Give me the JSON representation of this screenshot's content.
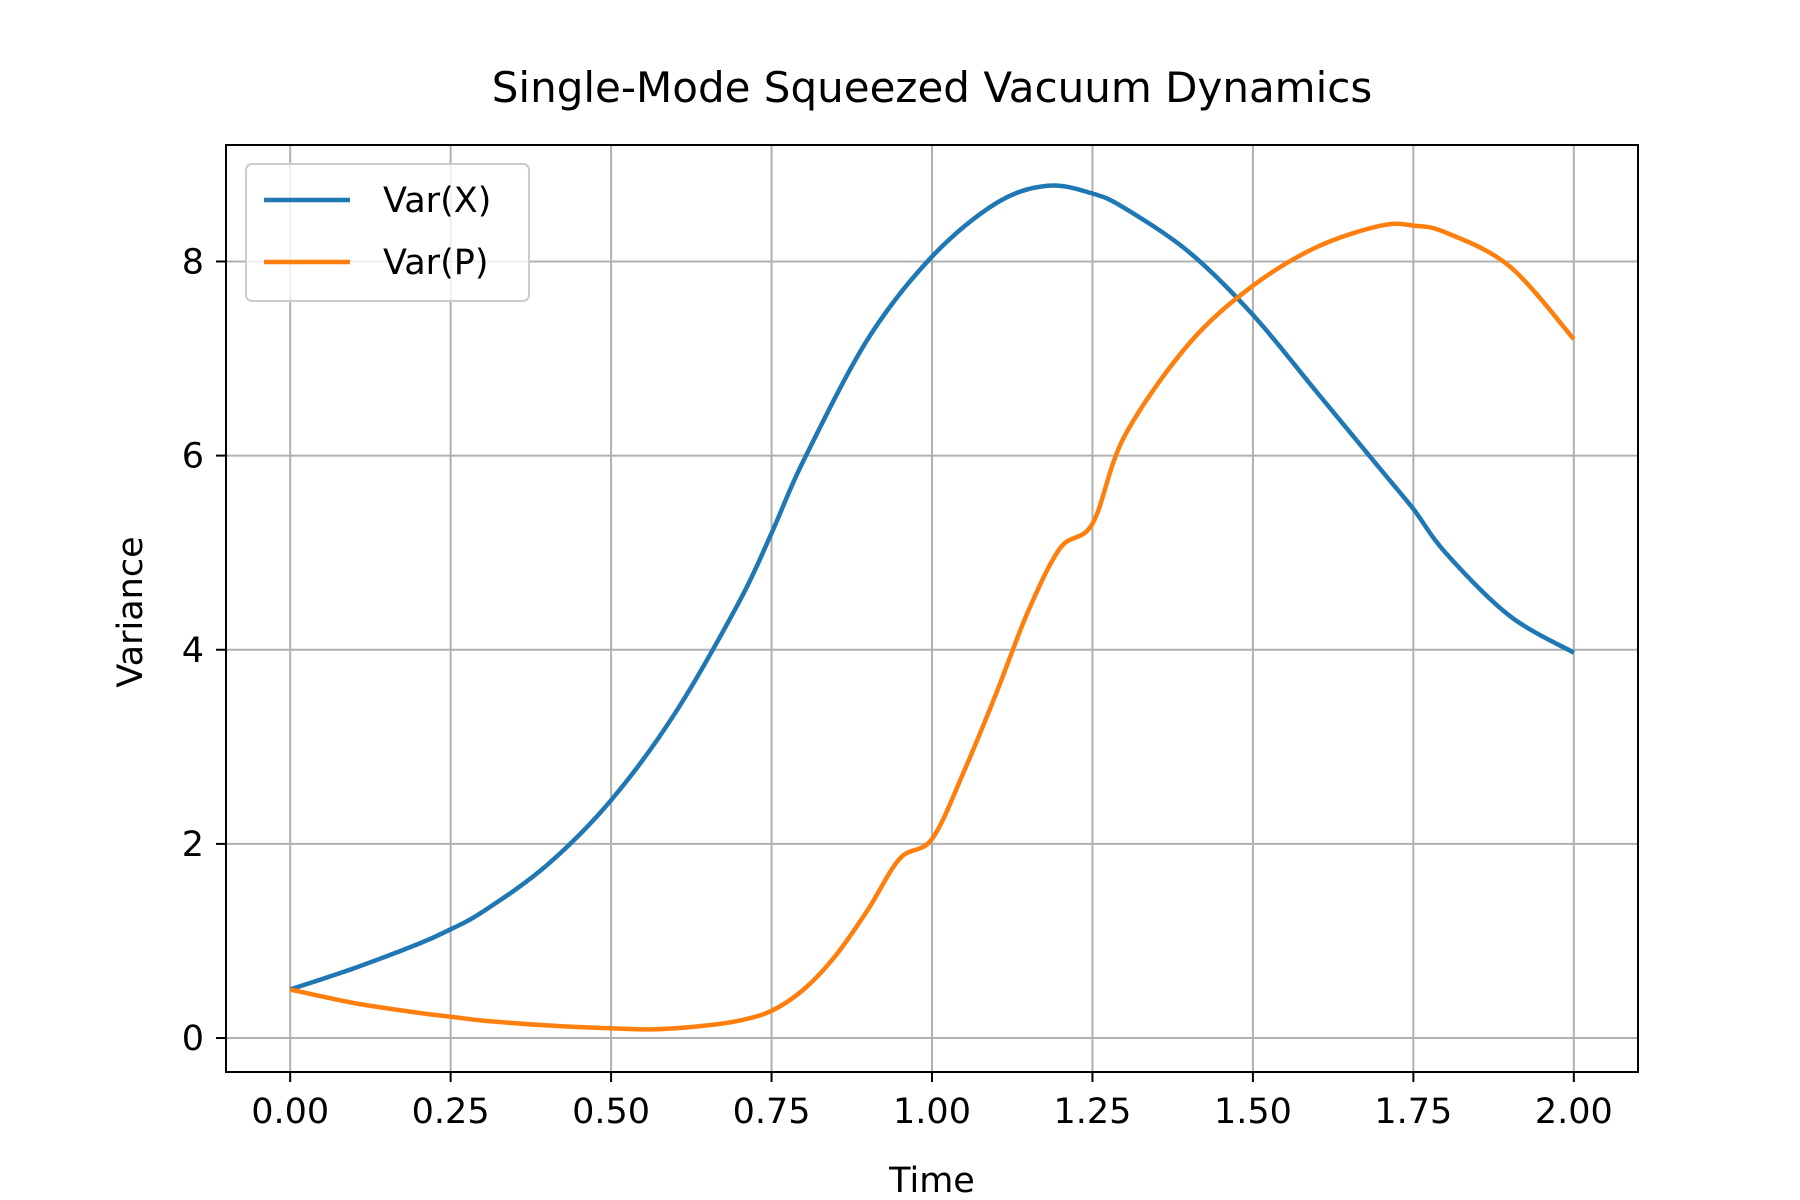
{
  "chart_data": {
    "type": "line",
    "title": "Single-Mode Squeezed Vacuum Dynamics",
    "xlabel": "Time",
    "ylabel": "Variance",
    "xlim": [
      -0.1,
      2.1
    ],
    "ylim": [
      -0.35,
      9.2
    ],
    "xticks": [
      0.0,
      0.25,
      0.5,
      0.75,
      1.0,
      1.25,
      1.5,
      1.75,
      2.0
    ],
    "xtick_labels": [
      "0.00",
      "0.25",
      "0.50",
      "0.75",
      "1.00",
      "1.25",
      "1.50",
      "1.75",
      "2.00"
    ],
    "yticks": [
      0,
      2,
      4,
      6,
      8
    ],
    "ytick_labels": [
      "0",
      "2",
      "4",
      "6",
      "8"
    ],
    "grid": true,
    "legend_position": "top-left",
    "series": [
      {
        "name": "Var(X)",
        "color": "#1f77b4",
        "x": [
          0.0,
          0.1,
          0.2,
          0.25,
          0.3,
          0.4,
          0.5,
          0.6,
          0.7,
          0.75,
          0.8,
          0.9,
          1.0,
          1.1,
          1.18,
          1.25,
          1.3,
          1.4,
          1.5,
          1.6,
          1.7,
          1.75,
          1.8,
          1.9,
          2.0
        ],
        "y": [
          0.5,
          0.72,
          0.97,
          1.12,
          1.3,
          1.78,
          2.45,
          3.35,
          4.5,
          5.2,
          5.95,
          7.2,
          8.05,
          8.6,
          8.78,
          8.7,
          8.55,
          8.1,
          7.45,
          6.65,
          5.85,
          5.45,
          5.0,
          4.35,
          3.97
        ]
      },
      {
        "name": "Var(P)",
        "color": "#ff7f0e",
        "x": [
          0.0,
          0.1,
          0.2,
          0.25,
          0.3,
          0.4,
          0.5,
          0.57,
          0.65,
          0.7,
          0.75,
          0.8,
          0.85,
          0.9,
          0.95,
          1.0,
          1.05,
          1.1,
          1.15,
          1.2,
          1.25,
          1.3,
          1.4,
          1.5,
          1.6,
          1.7,
          1.75,
          1.8,
          1.9,
          2.0
        ],
        "y": [
          0.5,
          0.36,
          0.26,
          0.22,
          0.18,
          0.13,
          0.1,
          0.09,
          0.13,
          0.18,
          0.28,
          0.5,
          0.85,
          1.32,
          1.85,
          2.05,
          2.75,
          3.55,
          4.4,
          5.05,
          5.3,
          6.2,
          7.15,
          7.75,
          8.15,
          8.37,
          8.37,
          8.3,
          7.95,
          7.2
        ]
      }
    ]
  }
}
